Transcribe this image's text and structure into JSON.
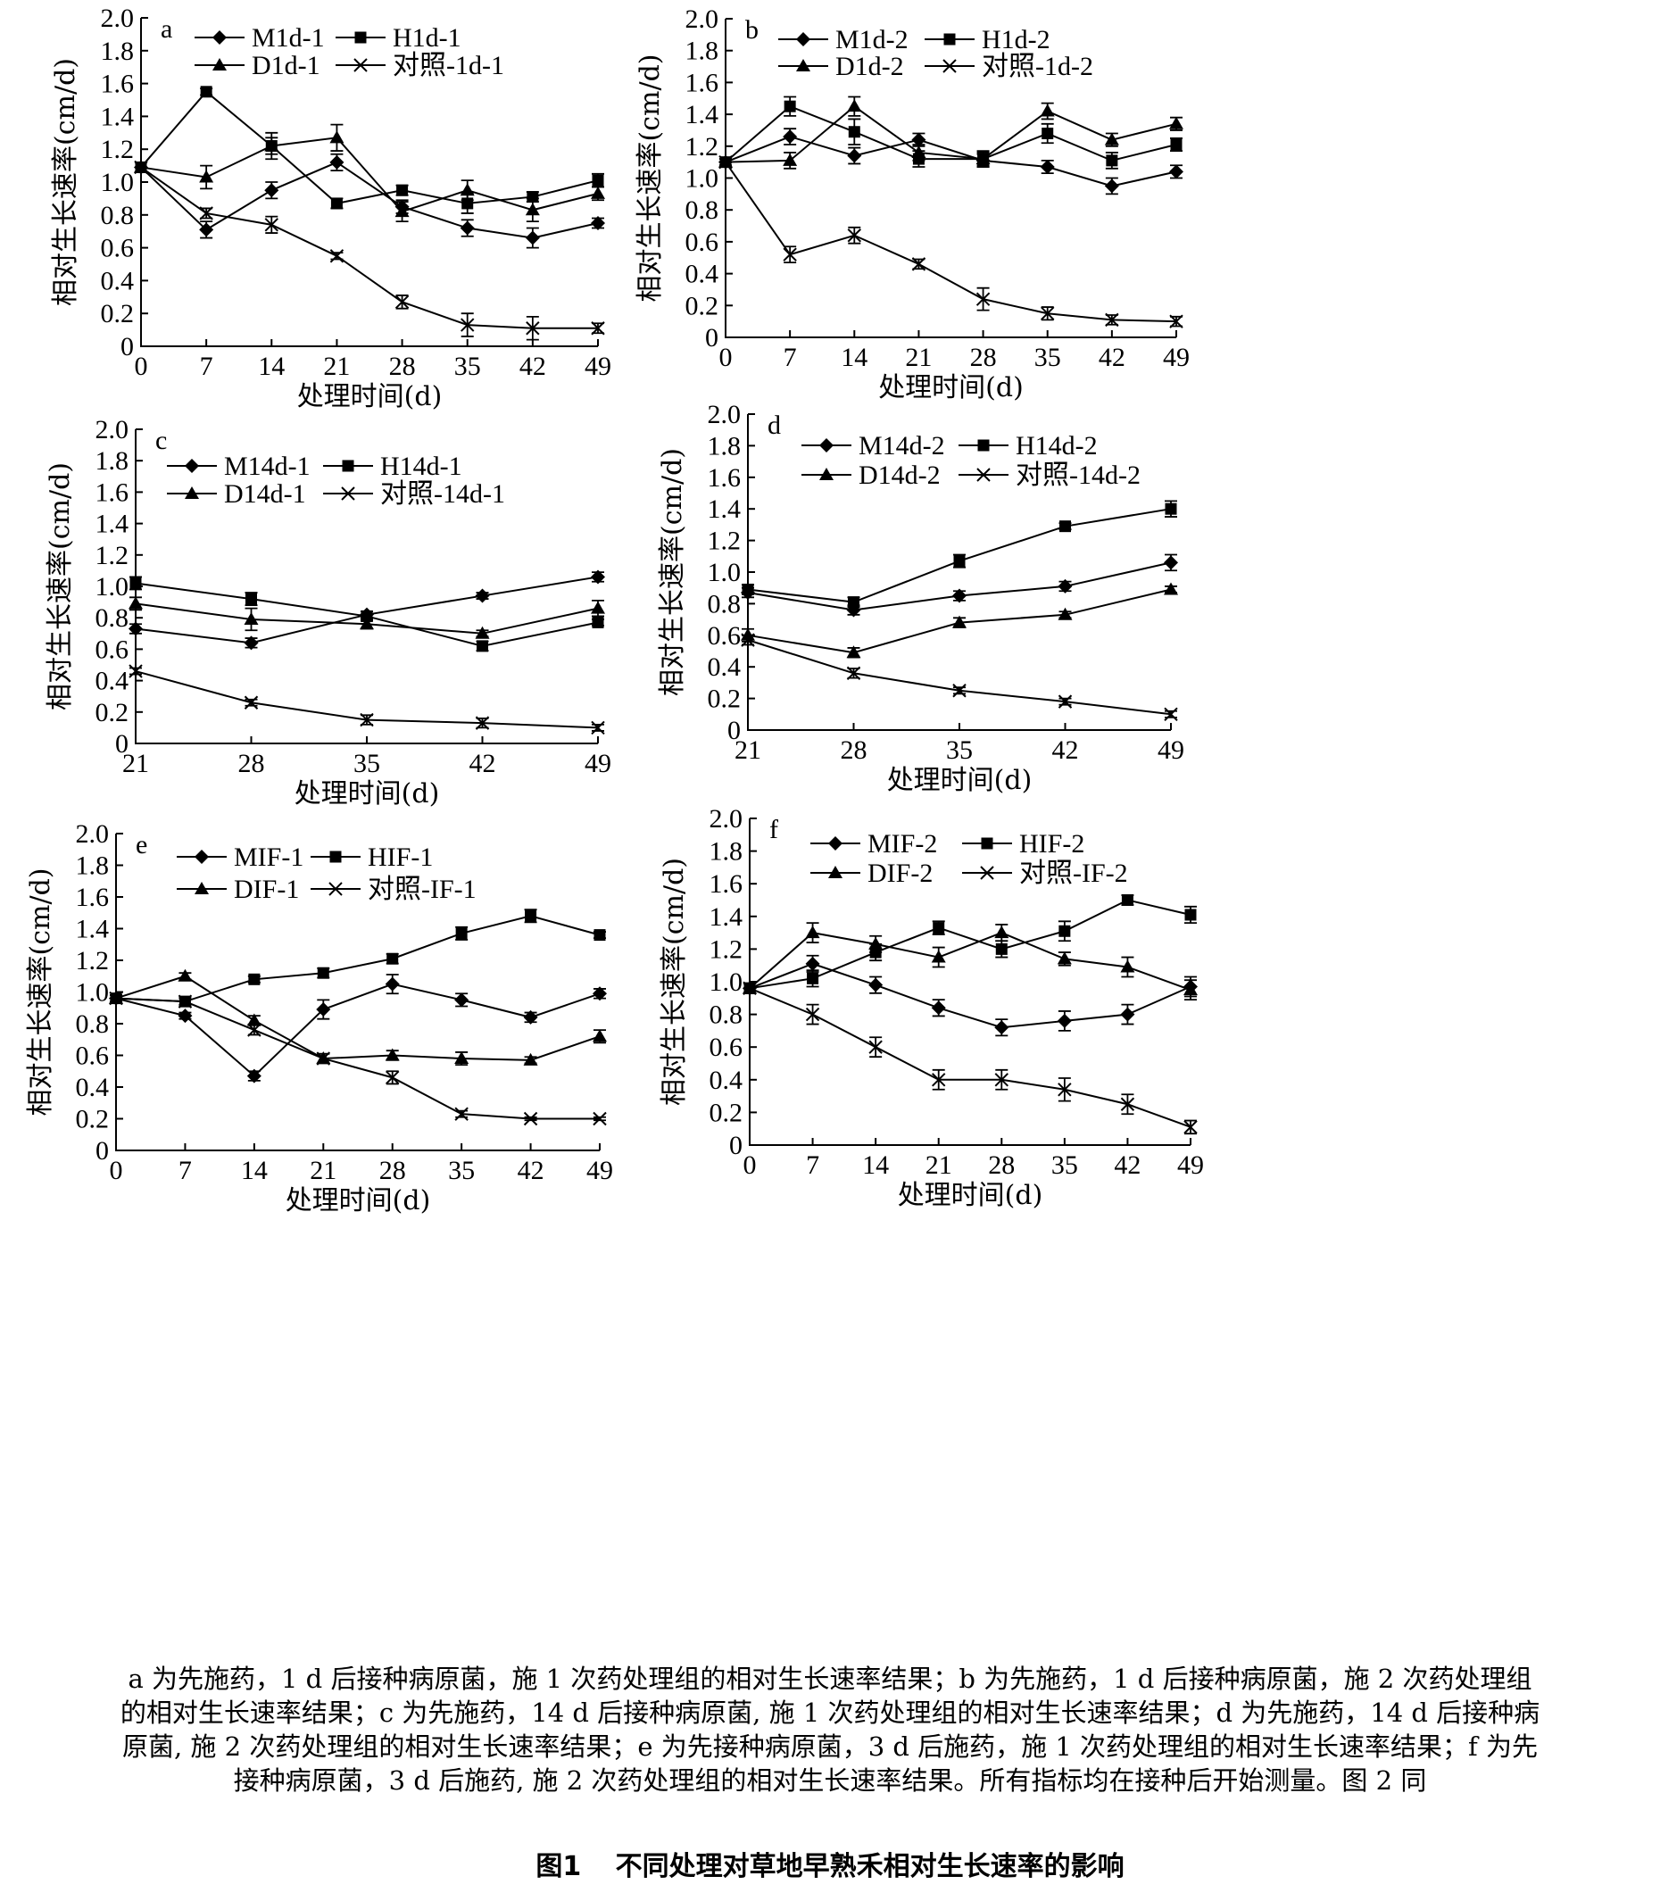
{
  "caption": "a 为先施药，1 d 后接种病原菌，施 1 次药处理组的相对生长速率结果；b 为先施药，1 d 后接种病原菌，施 2 次药处理组的相对生长速率结果；c 为先施药，14 d 后接种病原菌, 施 1 次药处理组的相对生长速率结果；d 为先施药，14 d 后接种病原菌, 施 2 次药处理组的相对生长速率结果；e 为先接种病原菌，3 d 后施药，施 1 次药处理组的相对生长速率结果；f 为先接种病原菌，3 d 后施药, 施 2 次药处理组的相对生长速率结果。所有指标均在接种后开始测量。图 2 同",
  "figure_title": {
    "number": "图1",
    "text": "不同处理对草地早熟禾相对生长速率的影响"
  },
  "chart_data": [
    {
      "panel": "a",
      "type": "line",
      "xlabel": "处理时间(d)",
      "ylabel": "相对生长速率(cm/d)",
      "ylim": [
        0,
        2.0
      ],
      "xlim": [
        0,
        49
      ],
      "x": [
        0,
        7,
        14,
        21,
        28,
        35,
        42,
        49
      ],
      "yticks": [
        "0",
        "0.2",
        "0.4",
        "0.6",
        "0.8",
        "1.0",
        "1.2",
        "1.4",
        "1.6",
        "1.8",
        "2.0"
      ],
      "xticks": [
        "0",
        "7",
        "14",
        "21",
        "28",
        "35",
        "42",
        "49"
      ],
      "legend_position": "top",
      "series": [
        {
          "name": "M1d-1",
          "marker": "diamond",
          "values": [
            1.09,
            0.71,
            0.95,
            1.12,
            0.85,
            0.72,
            0.66,
            0.75
          ],
          "errors": [
            0.03,
            0.05,
            0.05,
            0.05,
            0.04,
            0.05,
            0.06,
            0.03
          ]
        },
        {
          "name": "H1d-1",
          "marker": "square",
          "values": [
            1.09,
            1.55,
            1.22,
            0.87,
            0.95,
            0.87,
            0.91,
            1.01
          ],
          "errors": [
            0.03,
            0.02,
            0.05,
            0.03,
            0.03,
            0.06,
            0.03,
            0.04
          ]
        },
        {
          "name": "D1d-1",
          "marker": "triangle",
          "values": [
            1.09,
            1.03,
            1.22,
            1.27,
            0.82,
            0.95,
            0.83,
            0.93
          ],
          "errors": [
            0.03,
            0.07,
            0.08,
            0.08,
            0.06,
            0.06,
            0.07,
            0.04
          ]
        },
        {
          "name": "对照-1d-1",
          "marker": "cross",
          "values": [
            1.09,
            0.81,
            0.74,
            0.55,
            0.27,
            0.13,
            0.11,
            0.11
          ],
          "errors": [
            0.03,
            0.03,
            0.05,
            0.02,
            0.04,
            0.07,
            0.07,
            0.03
          ]
        }
      ]
    },
    {
      "panel": "b",
      "type": "line",
      "xlabel": "处理时间(d)",
      "ylabel": "相对生长速率(cm/d)",
      "ylim": [
        0,
        2.0
      ],
      "xlim": [
        0,
        49
      ],
      "x": [
        0,
        7,
        14,
        21,
        28,
        35,
        42,
        49
      ],
      "yticks": [
        "0",
        "0.2",
        "0.4",
        "0.6",
        "0.8",
        "1.0",
        "1.2",
        "1.4",
        "1.6",
        "1.8",
        "2.0"
      ],
      "xticks": [
        "0",
        "7",
        "14",
        "21",
        "28",
        "35",
        "42",
        "49"
      ],
      "legend_position": "top",
      "series": [
        {
          "name": "M1d-2",
          "marker": "diamond",
          "values": [
            1.1,
            1.26,
            1.14,
            1.24,
            1.11,
            1.07,
            0.95,
            1.04
          ],
          "errors": [
            0.02,
            0.05,
            0.05,
            0.04,
            0.04,
            0.04,
            0.05,
            0.04
          ]
        },
        {
          "name": "H1d-2",
          "marker": "square",
          "values": [
            1.1,
            1.45,
            1.29,
            1.12,
            1.12,
            1.28,
            1.11,
            1.21
          ],
          "errors": [
            0.02,
            0.06,
            0.08,
            0.05,
            0.05,
            0.06,
            0.05,
            0.04
          ]
        },
        {
          "name": "D1d-2",
          "marker": "triangle",
          "values": [
            1.1,
            1.11,
            1.45,
            1.16,
            1.12,
            1.42,
            1.24,
            1.34
          ],
          "errors": [
            0.02,
            0.05,
            0.06,
            0.05,
            0.04,
            0.05,
            0.04,
            0.04
          ]
        },
        {
          "name": "对照-1d-2",
          "marker": "cross",
          "values": [
            1.1,
            0.52,
            0.64,
            0.46,
            0.24,
            0.15,
            0.11,
            0.1
          ],
          "errors": [
            0.02,
            0.05,
            0.05,
            0.03,
            0.07,
            0.04,
            0.03,
            0.03
          ]
        }
      ]
    },
    {
      "panel": "c",
      "type": "line",
      "xlabel": "处理时间(d)",
      "ylabel": "相对生长速率(cm/d)",
      "ylim": [
        0,
        2.0
      ],
      "xlim": [
        21,
        49
      ],
      "x": [
        21,
        28,
        35,
        42,
        49
      ],
      "yticks": [
        "0",
        "0.2",
        "0.4",
        "0.6",
        "0.8",
        "1.0",
        "1.2",
        "1.4",
        "1.6",
        "1.8",
        "2.0"
      ],
      "xticks": [
        "21",
        "28",
        "35",
        "42",
        "49"
      ],
      "legend_position": "top",
      "series": [
        {
          "name": "M14d-1",
          "marker": "diamond",
          "values": [
            0.73,
            0.64,
            0.82,
            0.94,
            1.06
          ],
          "errors": [
            0.03,
            0.03,
            0.02,
            0.02,
            0.03
          ]
        },
        {
          "name": "H14d-1",
          "marker": "square",
          "values": [
            1.02,
            0.92,
            0.81,
            0.62,
            0.77
          ],
          "errors": [
            0.04,
            0.04,
            0.03,
            0.03,
            0.02
          ]
        },
        {
          "name": "D14d-1",
          "marker": "triangle",
          "values": [
            0.89,
            0.79,
            0.76,
            0.7,
            0.86
          ],
          "errors": [
            0.04,
            0.07,
            0.03,
            0.02,
            0.05
          ]
        },
        {
          "name": "对照-14d-1",
          "marker": "cross",
          "values": [
            0.46,
            0.26,
            0.15,
            0.13,
            0.1
          ],
          "errors": [
            0.02,
            0.02,
            0.03,
            0.03,
            0.02
          ]
        }
      ]
    },
    {
      "panel": "d",
      "type": "line",
      "xlabel": "处理时间(d)",
      "ylabel": "相对生长速率(cm/d)",
      "ylim": [
        0,
        2.0
      ],
      "xlim": [
        21,
        49
      ],
      "x": [
        21,
        28,
        35,
        42,
        49
      ],
      "yticks": [
        "0",
        "0.2",
        "0.4",
        "0.6",
        "0.8",
        "1.0",
        "1.2",
        "1.4",
        "1.6",
        "1.8",
        "2.0"
      ],
      "xticks": [
        "21",
        "28",
        "35",
        "42",
        "49"
      ],
      "legend_position": "top",
      "series": [
        {
          "name": "M14d-2",
          "marker": "diamond",
          "values": [
            0.87,
            0.76,
            0.85,
            0.91,
            1.06
          ],
          "errors": [
            0.03,
            0.03,
            0.03,
            0.03,
            0.05
          ]
        },
        {
          "name": "H14d-2",
          "marker": "square",
          "values": [
            0.89,
            0.81,
            1.07,
            1.29,
            1.4
          ],
          "errors": [
            0.03,
            0.03,
            0.04,
            0.02,
            0.05
          ]
        },
        {
          "name": "D14d-2",
          "marker": "triangle",
          "values": [
            0.6,
            0.49,
            0.68,
            0.73,
            0.89
          ],
          "errors": [
            0.04,
            0.03,
            0.03,
            0.02,
            0.02
          ]
        },
        {
          "name": "对照-14d-2",
          "marker": "cross",
          "values": [
            0.57,
            0.36,
            0.25,
            0.18,
            0.1
          ],
          "errors": [
            0.03,
            0.03,
            0.02,
            0.02,
            0.02
          ]
        }
      ]
    },
    {
      "panel": "e",
      "type": "line",
      "xlabel": "处理时间(d)",
      "ylabel": "相对生长速率(cm/d)",
      "ylim": [
        0,
        2.0
      ],
      "xlim": [
        0,
        49
      ],
      "x": [
        0,
        7,
        14,
        21,
        28,
        35,
        42,
        49
      ],
      "yticks": [
        "0",
        "0.2",
        "0.4",
        "0.6",
        "0.8",
        "1.0",
        "1.2",
        "1.4",
        "1.6",
        "1.8",
        "2.0"
      ],
      "xticks": [
        "0",
        "7",
        "14",
        "21",
        "28",
        "35",
        "42",
        "49"
      ],
      "legend_position": "top",
      "series": [
        {
          "name": "MIF-1",
          "marker": "diamond",
          "values": [
            0.96,
            0.85,
            0.47,
            0.89,
            1.05,
            0.95,
            0.84,
            0.99
          ],
          "errors": [
            0.02,
            0.02,
            0.03,
            0.06,
            0.06,
            0.04,
            0.03,
            0.03
          ]
        },
        {
          "name": "HIF-1",
          "marker": "square",
          "values": [
            0.96,
            0.94,
            1.08,
            1.12,
            1.21,
            1.37,
            1.48,
            1.36
          ],
          "errors": [
            0.02,
            0.03,
            0.02,
            0.03,
            0.03,
            0.04,
            0.04,
            0.02
          ]
        },
        {
          "name": "DIF-1",
          "marker": "triangle",
          "values": [
            0.96,
            1.1,
            0.82,
            0.58,
            0.6,
            0.58,
            0.57,
            0.72
          ],
          "errors": [
            0.02,
            0.02,
            0.03,
            0.03,
            0.03,
            0.04,
            0.02,
            0.04
          ]
        },
        {
          "name": "对照-IF-1",
          "marker": "cross",
          "values": [
            0.96,
            0.94,
            0.76,
            0.58,
            0.46,
            0.23,
            0.2,
            0.2
          ],
          "errors": [
            0.02,
            0.02,
            0.03,
            0.03,
            0.04,
            0.02,
            0.01,
            0.01
          ]
        }
      ]
    },
    {
      "panel": "f",
      "type": "line",
      "xlabel": "处理时间(d)",
      "ylabel": "相对生长速率(cm/d)",
      "ylim": [
        0,
        2.0
      ],
      "xlim": [
        0,
        49
      ],
      "x": [
        0,
        7,
        14,
        21,
        28,
        35,
        42,
        49
      ],
      "yticks": [
        "0",
        "0.2",
        "0.4",
        "0.6",
        "0.8",
        "1.0",
        "1.2",
        "1.4",
        "1.6",
        "1.8",
        "2.0"
      ],
      "xticks": [
        "0",
        "7",
        "14",
        "21",
        "28",
        "35",
        "42",
        "49"
      ],
      "legend_position": "top",
      "series": [
        {
          "name": "MIF-2",
          "marker": "diamond",
          "values": [
            0.96,
            1.11,
            0.98,
            0.84,
            0.72,
            0.76,
            0.8,
            0.97
          ],
          "errors": [
            0.03,
            0.05,
            0.05,
            0.05,
            0.05,
            0.06,
            0.06,
            0.06
          ]
        },
        {
          "name": "HIF-2",
          "marker": "square",
          "values": [
            0.96,
            1.02,
            1.18,
            1.33,
            1.2,
            1.31,
            1.5,
            1.41
          ],
          "errors": [
            0.03,
            0.05,
            0.05,
            0.04,
            0.05,
            0.06,
            0.03,
            0.05
          ]
        },
        {
          "name": "DIF-2",
          "marker": "triangle",
          "values": [
            0.96,
            1.3,
            1.23,
            1.15,
            1.3,
            1.14,
            1.09,
            0.95
          ],
          "errors": [
            0.03,
            0.06,
            0.05,
            0.06,
            0.05,
            0.04,
            0.06,
            0.06
          ]
        },
        {
          "name": "对照-IF-2",
          "marker": "cross",
          "values": [
            0.96,
            0.8,
            0.6,
            0.4,
            0.4,
            0.34,
            0.25,
            0.11
          ],
          "errors": [
            0.03,
            0.06,
            0.06,
            0.06,
            0.06,
            0.07,
            0.06,
            0.04
          ]
        }
      ]
    }
  ]
}
